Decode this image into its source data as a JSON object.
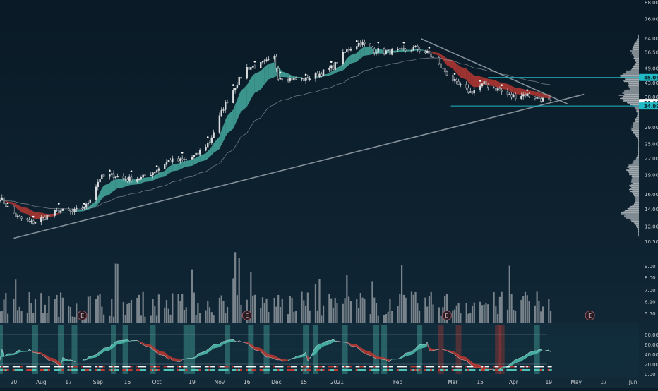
{
  "theme": {
    "background": "#0d1e2b",
    "background_lower": "#0f2533",
    "teal": "#4fc3b4",
    "teal_dark": "#2a7d74",
    "red": "#c03a33",
    "candle_up": "#d9dcdf",
    "line_grey": "#9aa3aa",
    "cyan": "#1fb8c4",
    "volume_bar": "#8d959c",
    "profile_bar": "#c9ced2",
    "axis_text": "#c8ccd0"
  },
  "chart_data": [
    {
      "type": "line",
      "panel": "price",
      "y_scale": "log",
      "ylim": [
        10.5,
        88.0
      ],
      "x_range": [
        "2020-07-13",
        "2021-06-04"
      ],
      "y_ticks": [
        "88.00",
        "76.00",
        "64.00",
        "56.50",
        "49.00",
        "43.00",
        "38.00",
        "29.00",
        "25.00",
        "22.00",
        "19.00",
        "16.00",
        "14.00",
        "12.00",
        "10.50"
      ],
      "price_labels": [
        {
          "value": 45.06,
          "text": "45.06",
          "style": "cyan"
        },
        {
          "value": 36.09,
          "text": "36.09",
          "style": "white"
        },
        {
          "value": 34.99,
          "text": "34.99",
          "style": "cyan"
        }
      ],
      "x_ticks": [
        {
          "date": "2020-07-20",
          "label": "20"
        },
        {
          "date": "2020-08-03",
          "label": "Aug"
        },
        {
          "date": "2020-08-17",
          "label": "17"
        },
        {
          "date": "2020-09-01",
          "label": "Sep"
        },
        {
          "date": "2020-09-16",
          "label": "16"
        },
        {
          "date": "2020-10-01",
          "label": "Oct"
        },
        {
          "date": "2020-10-19",
          "label": "19"
        },
        {
          "date": "2020-11-02",
          "label": "Nov"
        },
        {
          "date": "2020-11-16",
          "label": "16"
        },
        {
          "date": "2020-12-01",
          "label": "Dec"
        },
        {
          "date": "2020-12-15",
          "label": "15"
        },
        {
          "date": "2021-01-01",
          "label": "2021"
        },
        {
          "date": "2021-02-01",
          "label": "Feb"
        },
        {
          "date": "2021-03-01",
          "label": "Mar"
        },
        {
          "date": "2021-03-15",
          "label": "15"
        },
        {
          "date": "2021-04-01",
          "label": "Apr"
        },
        {
          "date": "2021-04-19",
          "label": "19"
        },
        {
          "date": "2021-05-03",
          "label": "May"
        },
        {
          "date": "2021-05-17",
          "label": "17"
        },
        {
          "date": "2021-06-01",
          "label": "Jun"
        }
      ],
      "price_path": [
        [
          "2020-07-13",
          15.5
        ],
        [
          "2020-07-17",
          14.2
        ],
        [
          "2020-07-22",
          13.0
        ],
        [
          "2020-07-29",
          12.4
        ],
        [
          "2020-08-05",
          13.0
        ],
        [
          "2020-08-12",
          13.8
        ],
        [
          "2020-08-19",
          13.6
        ],
        [
          "2020-08-26",
          14.4
        ],
        [
          "2020-09-02",
          18.5
        ],
        [
          "2020-09-09",
          18.9
        ],
        [
          "2020-09-16",
          18.2
        ],
        [
          "2020-09-23",
          18.4
        ],
        [
          "2020-09-30",
          19.6
        ],
        [
          "2020-10-07",
          21.5
        ],
        [
          "2020-10-14",
          21.5
        ],
        [
          "2020-10-21",
          22.5
        ],
        [
          "2020-10-28",
          25.5
        ],
        [
          "2020-11-04",
          34.5
        ],
        [
          "2020-11-11",
          43.0
        ],
        [
          "2020-11-16",
          49.0
        ],
        [
          "2020-11-23",
          50.5
        ],
        [
          "2020-11-30",
          53.5
        ],
        [
          "2020-12-02",
          45.5
        ],
        [
          "2020-12-09",
          44.5
        ],
        [
          "2020-12-16",
          44.2
        ],
        [
          "2020-12-23",
          46.5
        ],
        [
          "2020-12-30",
          49.5
        ],
        [
          "2021-01-06",
          57.5
        ],
        [
          "2021-01-13",
          61.5
        ],
        [
          "2021-01-20",
          57.5
        ],
        [
          "2021-01-27",
          56.5
        ],
        [
          "2021-02-03",
          57.0
        ],
        [
          "2021-02-10",
          58.5
        ],
        [
          "2021-02-17",
          55.5
        ],
        [
          "2021-02-24",
          48.5
        ],
        [
          "2021-03-03",
          42.5
        ],
        [
          "2021-03-10",
          39.5
        ],
        [
          "2021-03-17",
          42.5
        ],
        [
          "2021-03-24",
          40.5
        ],
        [
          "2021-03-31",
          38.0
        ],
        [
          "2021-04-07",
          38.8
        ],
        [
          "2021-04-14",
          37.5
        ],
        [
          "2021-04-20",
          36.09
        ]
      ],
      "trendlines": [
        {
          "from": [
            "2020-07-20",
            10.8
          ],
          "to": [
            "2021-05-07",
            38.8
          ],
          "color": "line_grey"
        },
        {
          "from": [
            "2021-02-13",
            63.5
          ],
          "to": [
            "2021-04-29",
            35.5
          ],
          "color": "line_grey"
        },
        {
          "from": [
            "2021-03-19",
            45.06
          ],
          "to": [
            "2021-06-04",
            45.06
          ],
          "color": "cyan"
        },
        {
          "from": [
            "2021-02-28",
            34.99
          ],
          "to": [
            "2021-06-04",
            34.99
          ],
          "color": "cyan"
        }
      ],
      "volume_profile_x_range": [
        "2021-05-24",
        "2021-06-04"
      ]
    },
    {
      "type": "bar",
      "panel": "volume",
      "y_scale": "log",
      "ylim": [
        5.0,
        10.5
      ],
      "y_ticks": [
        "9.00",
        "8.00",
        "7.00",
        "6.20",
        "5.50"
      ],
      "earnings_markers": [
        {
          "date": "2020-08-24",
          "text": "E"
        },
        {
          "date": "2020-11-16",
          "text": "E"
        },
        {
          "date": "2021-02-26",
          "text": "E"
        },
        {
          "date": "2021-05-10",
          "text": "E"
        }
      ]
    },
    {
      "type": "line",
      "panel": "oscillator",
      "ylim": [
        0,
        100
      ],
      "y_ticks": [
        "80.00",
        "60.00",
        "40.00",
        "20.00",
        "0.00"
      ],
      "levels": [
        20,
        80
      ]
    }
  ]
}
